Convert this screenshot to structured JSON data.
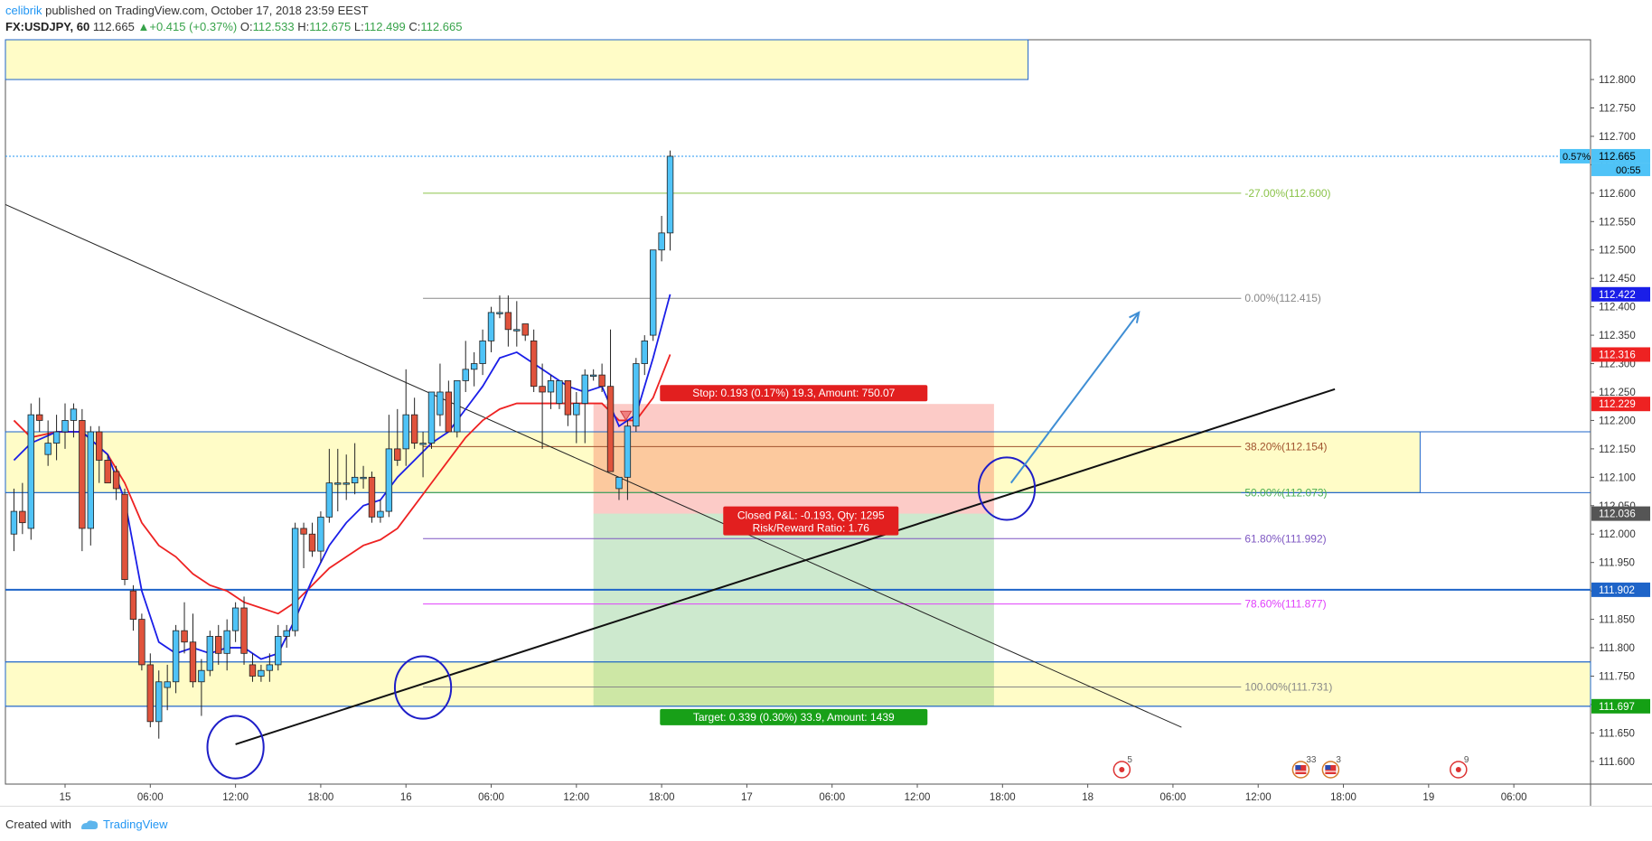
{
  "header": {
    "author": "celibrik",
    "published_text": "published on TradingView.com, October 17, 2018 23:59 EEST",
    "symbol": "FX:USDJPY, 60",
    "last": "112.665",
    "change": "+0.415 (+0.37%)",
    "open_label": "O:",
    "open": "112.533",
    "high_label": "H:",
    "high": "112.675",
    "low_label": "L:",
    "low": "112.499",
    "close_label": "C:",
    "close": "112.665"
  },
  "footer": {
    "created_with": "Created with",
    "brand": "TradingView"
  },
  "colors": {
    "up": "#4fc3f7",
    "down": "#e0533c",
    "ema_fast": "#1a1ee8",
    "ema_slow": "#ee2222",
    "zone": "#fffcc7"
  },
  "chart_data": {
    "type": "candlestick",
    "symbol": "USDJPY",
    "timeframe": "60",
    "ylim": [
      111.56,
      112.87
    ],
    "xlim": [
      0,
      186
    ],
    "y_ticks": [
      "111.600",
      "111.650",
      "111.700",
      "111.750",
      "111.800",
      "111.850",
      "111.900",
      "111.950",
      "112.000",
      "112.050",
      "112.100",
      "112.150",
      "112.200",
      "112.250",
      "112.300",
      "112.350",
      "112.400",
      "112.450",
      "112.500",
      "112.550",
      "112.600",
      "112.650",
      "112.700",
      "112.750",
      "112.800"
    ],
    "x_ticks": [
      {
        "i": 7,
        "label": "15"
      },
      {
        "i": 17,
        "label": "06:00"
      },
      {
        "i": 27,
        "label": "12:00"
      },
      {
        "i": 37,
        "label": "18:00"
      },
      {
        "i": 47,
        "label": "16"
      },
      {
        "i": 57,
        "label": "06:00"
      },
      {
        "i": 67,
        "label": "12:00"
      },
      {
        "i": 77,
        "label": "18:00"
      },
      {
        "i": 87,
        "label": "17"
      },
      {
        "i": 97,
        "label": "06:00"
      },
      {
        "i": 107,
        "label": "12:00"
      },
      {
        "i": 117,
        "label": "18:00"
      },
      {
        "i": 127,
        "label": "18"
      },
      {
        "i": 137,
        "label": "06:00"
      },
      {
        "i": 147,
        "label": "12:00"
      },
      {
        "i": 157,
        "label": "18:00"
      },
      {
        "i": 167,
        "label": "19"
      },
      {
        "i": 177,
        "label": "06:00"
      },
      {
        "i": 187,
        "label": "12:00"
      }
    ],
    "candles": [
      {
        "i": 1,
        "o": 112.0,
        "h": 112.08,
        "l": 111.97,
        "c": 112.04
      },
      {
        "i": 2,
        "o": 112.04,
        "h": 112.09,
        "l": 112.0,
        "c": 112.02
      },
      {
        "i": 3,
        "o": 112.01,
        "h": 112.23,
        "l": 111.99,
        "c": 112.21
      },
      {
        "i": 4,
        "o": 112.21,
        "h": 112.24,
        "l": 112.18,
        "c": 112.2
      },
      {
        "i": 5,
        "o": 112.14,
        "h": 112.2,
        "l": 112.12,
        "c": 112.16
      },
      {
        "i": 6,
        "o": 112.16,
        "h": 112.21,
        "l": 112.13,
        "c": 112.18
      },
      {
        "i": 7,
        "o": 112.18,
        "h": 112.23,
        "l": 112.15,
        "c": 112.2
      },
      {
        "i": 8,
        "o": 112.2,
        "h": 112.23,
        "l": 112.17,
        "c": 112.22
      },
      {
        "i": 9,
        "o": 112.2,
        "h": 112.22,
        "l": 111.97,
        "c": 112.01
      },
      {
        "i": 10,
        "o": 112.01,
        "h": 112.19,
        "l": 111.98,
        "c": 112.18
      },
      {
        "i": 11,
        "o": 112.18,
        "h": 112.19,
        "l": 112.09,
        "c": 112.13
      },
      {
        "i": 12,
        "o": 112.13,
        "h": 112.14,
        "l": 112.09,
        "c": 112.09
      },
      {
        "i": 13,
        "o": 112.11,
        "h": 112.12,
        "l": 112.06,
        "c": 112.08
      },
      {
        "i": 14,
        "o": 112.07,
        "h": 112.08,
        "l": 111.91,
        "c": 111.92
      },
      {
        "i": 15,
        "o": 111.9,
        "h": 111.91,
        "l": 111.83,
        "c": 111.85
      },
      {
        "i": 16,
        "o": 111.85,
        "h": 111.86,
        "l": 111.76,
        "c": 111.77
      },
      {
        "i": 17,
        "o": 111.77,
        "h": 111.79,
        "l": 111.66,
        "c": 111.67
      },
      {
        "i": 18,
        "o": 111.67,
        "h": 111.76,
        "l": 111.64,
        "c": 111.74
      },
      {
        "i": 19,
        "o": 111.73,
        "h": 111.77,
        "l": 111.69,
        "c": 111.74
      },
      {
        "i": 20,
        "o": 111.74,
        "h": 111.84,
        "l": 111.72,
        "c": 111.83
      },
      {
        "i": 21,
        "o": 111.83,
        "h": 111.88,
        "l": 111.79,
        "c": 111.81
      },
      {
        "i": 22,
        "o": 111.81,
        "h": 111.86,
        "l": 111.73,
        "c": 111.74
      },
      {
        "i": 23,
        "o": 111.74,
        "h": 111.78,
        "l": 111.68,
        "c": 111.76
      },
      {
        "i": 24,
        "o": 111.76,
        "h": 111.83,
        "l": 111.75,
        "c": 111.82
      },
      {
        "i": 25,
        "o": 111.82,
        "h": 111.84,
        "l": 111.77,
        "c": 111.79
      },
      {
        "i": 26,
        "o": 111.79,
        "h": 111.85,
        "l": 111.76,
        "c": 111.83
      },
      {
        "i": 27,
        "o": 111.83,
        "h": 111.88,
        "l": 111.81,
        "c": 111.87
      },
      {
        "i": 28,
        "o": 111.87,
        "h": 111.89,
        "l": 111.77,
        "c": 111.79
      },
      {
        "i": 29,
        "o": 111.77,
        "h": 111.79,
        "l": 111.74,
        "c": 111.75
      },
      {
        "i": 30,
        "o": 111.75,
        "h": 111.77,
        "l": 111.74,
        "c": 111.76
      },
      {
        "i": 31,
        "o": 111.76,
        "h": 111.79,
        "l": 111.74,
        "c": 111.77
      },
      {
        "i": 32,
        "o": 111.77,
        "h": 111.84,
        "l": 111.76,
        "c": 111.82
      },
      {
        "i": 33,
        "o": 111.82,
        "h": 111.84,
        "l": 111.8,
        "c": 111.83
      },
      {
        "i": 34,
        "o": 111.83,
        "h": 112.02,
        "l": 111.82,
        "c": 112.01
      },
      {
        "i": 35,
        "o": 112.01,
        "h": 112.02,
        "l": 111.94,
        "c": 112.0
      },
      {
        "i": 36,
        "o": 112.0,
        "h": 112.02,
        "l": 111.96,
        "c": 111.97
      },
      {
        "i": 37,
        "o": 111.97,
        "h": 112.04,
        "l": 111.95,
        "c": 112.03
      },
      {
        "i": 38,
        "o": 112.03,
        "h": 112.15,
        "l": 112.02,
        "c": 112.09
      },
      {
        "i": 39,
        "o": 112.09,
        "h": 112.15,
        "l": 112.04,
        "c": 112.09
      },
      {
        "i": 40,
        "o": 112.09,
        "h": 112.14,
        "l": 112.06,
        "c": 112.09
      },
      {
        "i": 41,
        "o": 112.09,
        "h": 112.16,
        "l": 112.07,
        "c": 112.1
      },
      {
        "i": 42,
        "o": 112.1,
        "h": 112.12,
        "l": 112.08,
        "c": 112.1
      },
      {
        "i": 43,
        "o": 112.1,
        "h": 112.11,
        "l": 112.02,
        "c": 112.03
      },
      {
        "i": 44,
        "o": 112.03,
        "h": 112.06,
        "l": 112.02,
        "c": 112.04
      },
      {
        "i": 45,
        "o": 112.04,
        "h": 112.21,
        "l": 112.03,
        "c": 112.15
      },
      {
        "i": 46,
        "o": 112.15,
        "h": 112.22,
        "l": 112.12,
        "c": 112.13
      },
      {
        "i": 47,
        "o": 112.15,
        "h": 112.29,
        "l": 112.12,
        "c": 112.21
      },
      {
        "i": 48,
        "o": 112.21,
        "h": 112.24,
        "l": 112.15,
        "c": 112.16
      },
      {
        "i": 49,
        "o": 112.16,
        "h": 112.18,
        "l": 112.1,
        "c": 112.16
      },
      {
        "i": 50,
        "o": 112.16,
        "h": 112.25,
        "l": 112.15,
        "c": 112.25
      },
      {
        "i": 51,
        "o": 112.21,
        "h": 112.3,
        "l": 112.19,
        "c": 112.25
      },
      {
        "i": 52,
        "o": 112.25,
        "h": 112.27,
        "l": 112.18,
        "c": 112.18
      },
      {
        "i": 53,
        "o": 112.18,
        "h": 112.27,
        "l": 112.17,
        "c": 112.27
      },
      {
        "i": 54,
        "o": 112.27,
        "h": 112.34,
        "l": 112.25,
        "c": 112.29
      },
      {
        "i": 55,
        "o": 112.29,
        "h": 112.32,
        "l": 112.26,
        "c": 112.3
      },
      {
        "i": 56,
        "o": 112.3,
        "h": 112.36,
        "l": 112.28,
        "c": 112.34
      },
      {
        "i": 57,
        "o": 112.34,
        "h": 112.4,
        "l": 112.32,
        "c": 112.39
      },
      {
        "i": 58,
        "o": 112.39,
        "h": 112.42,
        "l": 112.38,
        "c": 112.39
      },
      {
        "i": 59,
        "o": 112.39,
        "h": 112.42,
        "l": 112.33,
        "c": 112.36
      },
      {
        "i": 60,
        "o": 112.36,
        "h": 112.41,
        "l": 112.33,
        "c": 112.36
      },
      {
        "i": 61,
        "o": 112.37,
        "h": 112.37,
        "l": 112.34,
        "c": 112.35
      },
      {
        "i": 62,
        "o": 112.34,
        "h": 112.36,
        "l": 112.25,
        "c": 112.26
      },
      {
        "i": 63,
        "o": 112.26,
        "h": 112.3,
        "l": 112.15,
        "c": 112.25
      },
      {
        "i": 64,
        "o": 112.25,
        "h": 112.28,
        "l": 112.22,
        "c": 112.27
      },
      {
        "i": 65,
        "o": 112.23,
        "h": 112.27,
        "l": 112.22,
        "c": 112.27
      },
      {
        "i": 66,
        "o": 112.27,
        "h": 112.27,
        "l": 112.19,
        "c": 112.21
      },
      {
        "i": 67,
        "o": 112.21,
        "h": 112.25,
        "l": 112.16,
        "c": 112.23
      },
      {
        "i": 68,
        "o": 112.23,
        "h": 112.29,
        "l": 112.16,
        "c": 112.28
      },
      {
        "i": 69,
        "o": 112.28,
        "h": 112.29,
        "l": 112.27,
        "c": 112.28
      },
      {
        "i": 70,
        "o": 112.28,
        "h": 112.3,
        "l": 112.25,
        "c": 112.26
      },
      {
        "i": 71,
        "o": 112.26,
        "h": 112.36,
        "l": 112.11,
        "c": 112.11
      },
      {
        "i": 72,
        "o": 112.08,
        "h": 112.1,
        "l": 112.06,
        "c": 112.1
      },
      {
        "i": 73,
        "o": 112.1,
        "h": 112.2,
        "l": 112.06,
        "c": 112.19
      },
      {
        "i": 74,
        "o": 112.19,
        "h": 112.31,
        "l": 112.18,
        "c": 112.3
      },
      {
        "i": 75,
        "o": 112.3,
        "h": 112.35,
        "l": 112.28,
        "c": 112.34
      },
      {
        "i": 76,
        "o": 112.35,
        "h": 112.5,
        "l": 112.34,
        "c": 112.5
      },
      {
        "i": 77,
        "o": 112.5,
        "h": 112.56,
        "l": 112.48,
        "c": 112.53
      },
      {
        "i": 78,
        "o": 112.53,
        "h": 112.675,
        "l": 112.499,
        "c": 112.665
      }
    ],
    "ema_fast": [
      {
        "i": 1,
        "v": 112.13
      },
      {
        "i": 3,
        "v": 112.16
      },
      {
        "i": 6,
        "v": 112.18
      },
      {
        "i": 9,
        "v": 112.18
      },
      {
        "i": 12,
        "v": 112.14
      },
      {
        "i": 14,
        "v": 112.06
      },
      {
        "i": 16,
        "v": 111.9
      },
      {
        "i": 18,
        "v": 111.81
      },
      {
        "i": 20,
        "v": 111.79
      },
      {
        "i": 22,
        "v": 111.8
      },
      {
        "i": 24,
        "v": 111.79
      },
      {
        "i": 26,
        "v": 111.8
      },
      {
        "i": 28,
        "v": 111.8
      },
      {
        "i": 30,
        "v": 111.78
      },
      {
        "i": 32,
        "v": 111.79
      },
      {
        "i": 34,
        "v": 111.85
      },
      {
        "i": 36,
        "v": 111.92
      },
      {
        "i": 38,
        "v": 111.98
      },
      {
        "i": 40,
        "v": 112.02
      },
      {
        "i": 42,
        "v": 112.05
      },
      {
        "i": 44,
        "v": 112.06
      },
      {
        "i": 46,
        "v": 112.1
      },
      {
        "i": 48,
        "v": 112.13
      },
      {
        "i": 50,
        "v": 112.16
      },
      {
        "i": 52,
        "v": 112.18
      },
      {
        "i": 54,
        "v": 112.22
      },
      {
        "i": 56,
        "v": 112.26
      },
      {
        "i": 58,
        "v": 112.31
      },
      {
        "i": 60,
        "v": 112.32
      },
      {
        "i": 62,
        "v": 112.3
      },
      {
        "i": 64,
        "v": 112.28
      },
      {
        "i": 66,
        "v": 112.26
      },
      {
        "i": 68,
        "v": 112.25
      },
      {
        "i": 70,
        "v": 112.26
      },
      {
        "i": 72,
        "v": 112.19
      },
      {
        "i": 74,
        "v": 112.21
      },
      {
        "i": 76,
        "v": 112.31
      },
      {
        "i": 78,
        "v": 112.422
      }
    ],
    "ema_slow": [
      {
        "i": 1,
        "v": 112.2
      },
      {
        "i": 3,
        "v": 112.17
      },
      {
        "i": 6,
        "v": 112.18
      },
      {
        "i": 9,
        "v": 112.18
      },
      {
        "i": 12,
        "v": 112.14
      },
      {
        "i": 14,
        "v": 112.09
      },
      {
        "i": 16,
        "v": 112.02
      },
      {
        "i": 18,
        "v": 111.98
      },
      {
        "i": 20,
        "v": 111.96
      },
      {
        "i": 22,
        "v": 111.93
      },
      {
        "i": 24,
        "v": 111.91
      },
      {
        "i": 26,
        "v": 111.9
      },
      {
        "i": 28,
        "v": 111.88
      },
      {
        "i": 30,
        "v": 111.87
      },
      {
        "i": 32,
        "v": 111.86
      },
      {
        "i": 34,
        "v": 111.88
      },
      {
        "i": 36,
        "v": 111.91
      },
      {
        "i": 38,
        "v": 111.94
      },
      {
        "i": 40,
        "v": 111.96
      },
      {
        "i": 42,
        "v": 111.98
      },
      {
        "i": 44,
        "v": 111.99
      },
      {
        "i": 46,
        "v": 112.01
      },
      {
        "i": 48,
        "v": 112.05
      },
      {
        "i": 50,
        "v": 112.09
      },
      {
        "i": 52,
        "v": 112.13
      },
      {
        "i": 54,
        "v": 112.17
      },
      {
        "i": 56,
        "v": 112.2
      },
      {
        "i": 58,
        "v": 112.22
      },
      {
        "i": 60,
        "v": 112.23
      },
      {
        "i": 62,
        "v": 112.23
      },
      {
        "i": 64,
        "v": 112.23
      },
      {
        "i": 66,
        "v": 112.23
      },
      {
        "i": 68,
        "v": 112.23
      },
      {
        "i": 70,
        "v": 112.23
      },
      {
        "i": 72,
        "v": 112.2
      },
      {
        "i": 74,
        "v": 112.2
      },
      {
        "i": 76,
        "v": 112.24
      },
      {
        "i": 78,
        "v": 112.316
      }
    ],
    "zones": [
      {
        "x1": 0,
        "x2": 120,
        "y1": 112.8,
        "y2": 112.87
      },
      {
        "x1": 0,
        "x2": 166,
        "y1": 112.073,
        "y2": 112.18
      },
      {
        "x1": 0,
        "x2": 186,
        "y1": 111.697,
        "y2": 111.775
      }
    ],
    "horizontal_lines": [
      {
        "y": 112.665,
        "color": "#2196f3",
        "dash": true
      },
      {
        "y": 111.902,
        "color": "#1e64c8",
        "width": 2
      },
      {
        "y": 111.775,
        "color": "#1e64c8"
      },
      {
        "y": 111.697,
        "color": "#1e64c8"
      },
      {
        "y": 112.18,
        "color": "#1e64c8"
      },
      {
        "y": 112.073,
        "color": "#1e64c8"
      }
    ],
    "fibonacci": {
      "x1": 49,
      "x2": 145,
      "levels": [
        {
          "y": 112.6,
          "label": "-27.00%(112.600)",
          "color": "#8bc34a"
        },
        {
          "y": 112.415,
          "label": "0.00%(112.415)",
          "color": "#888888"
        },
        {
          "y": 112.154,
          "label": "38.20%(112.154)",
          "color": "#a0522d"
        },
        {
          "y": 112.073,
          "label": "50.00%(112.073)",
          "color": "#4caf50"
        },
        {
          "y": 111.992,
          "label": "61.80%(111.992)",
          "color": "#7e57c2"
        },
        {
          "y": 111.877,
          "label": "78.60%(111.877)",
          "color": "#e040fb"
        },
        {
          "y": 111.731,
          "label": "100.00%(111.731)",
          "color": "#888888"
        }
      ]
    },
    "position": {
      "x1": 69,
      "x2": 116,
      "entry": 112.036,
      "stop": 112.229,
      "target": 111.697,
      "stop_label": "Stop: 0.193 (0.17%) 19.3, Amount: 750.07",
      "target_label": "Target: 0.339 (0.30%) 33.9, Amount: 1439",
      "pnl_label": "Closed P&L: -0.193, Qty: 1295",
      "rr_label": "Risk/Reward Ratio: 1.76"
    },
    "trendlines": [
      {
        "x1": 0,
        "y1": 112.58,
        "x2": 138,
        "y2": 111.66,
        "width": 1,
        "color": "#222222"
      },
      {
        "x1": 27,
        "y1": 111.63,
        "x2": 156,
        "y2": 112.255,
        "width": 2,
        "color": "#111111"
      }
    ],
    "arrow": {
      "x1": 118,
      "y1": 112.09,
      "x2": 133,
      "y2": 112.39,
      "color": "#3f8ed4"
    },
    "circles": [
      {
        "x": 27,
        "y": 111.625,
        "rx": 3.3,
        "ry": 0.055
      },
      {
        "x": 49,
        "y": 111.73,
        "rx": 3.3,
        "ry": 0.055
      },
      {
        "x": 117.5,
        "y": 112.08,
        "rx": 3.3,
        "ry": 0.055
      }
    ],
    "axis_badges": [
      {
        "label": "112.665",
        "bg": "#4fc3f7",
        "fg": "#000000",
        "y": 112.665
      },
      {
        "label": "112.422",
        "bg": "#1a1ee8",
        "fg": "#ffffff",
        "y": 112.422
      },
      {
        "label": "112.316",
        "bg": "#ee2222",
        "fg": "#ffffff",
        "y": 112.316
      },
      {
        "label": "112.229",
        "bg": "#ee2222",
        "fg": "#ffffff",
        "y": 112.229
      },
      {
        "label": "112.036",
        "bg": "#555555",
        "fg": "#ffffff",
        "y": 112.036
      },
      {
        "label": "111.902",
        "bg": "#1e64c8",
        "fg": "#ffffff",
        "y": 111.902
      },
      {
        "label": "111.697",
        "bg": "#14a014",
        "fg": "#ffffff",
        "y": 111.697
      }
    ],
    "countdown": "00:55",
    "pct_badge": "0.57%",
    "events": [
      {
        "x": 131,
        "count": "5",
        "flag": "jp"
      },
      {
        "x": 152,
        "count": "33",
        "flag": "us"
      },
      {
        "x": 155.5,
        "count": "3",
        "flag": "us"
      },
      {
        "x": 170.5,
        "count": "9",
        "flag": "jp"
      }
    ]
  }
}
